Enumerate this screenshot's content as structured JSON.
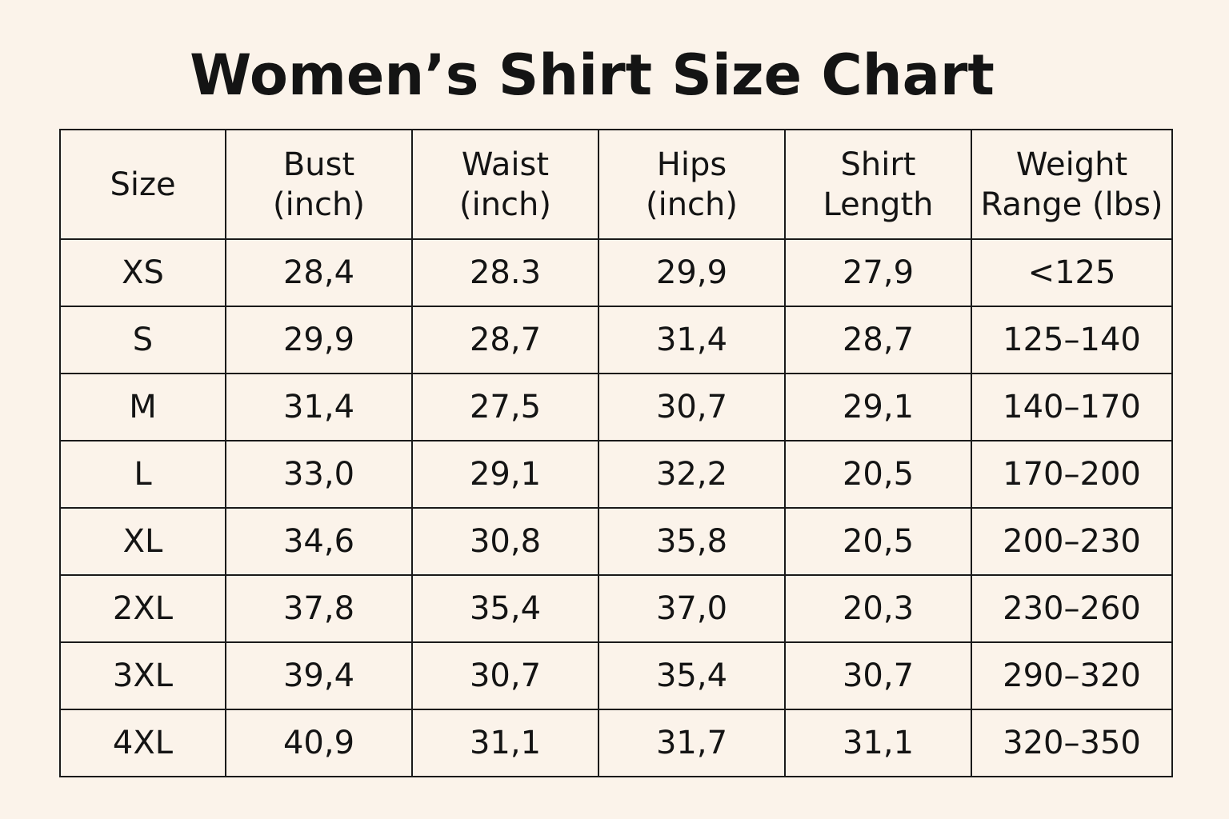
{
  "chart_data": {
    "type": "table",
    "title": "Women’s Shirt Size Chart",
    "columns": [
      [
        "Size"
      ],
      [
        "Bust",
        "(inch)"
      ],
      [
        "Waist",
        "(inch)"
      ],
      [
        "Hips",
        "(inch)"
      ],
      [
        "Shirt",
        "Length"
      ],
      [
        "Weight",
        "Range (lbs)"
      ]
    ],
    "rows": [
      [
        "XS",
        "28,4",
        "28.3",
        "29,9",
        "27,9",
        "<125"
      ],
      [
        "S",
        "29,9",
        "28,7",
        "31,4",
        "28,7",
        "125–140"
      ],
      [
        "M",
        "31,4",
        "27,5",
        "30,7",
        "29,1",
        "140–170"
      ],
      [
        "L",
        "33,0",
        "29,1",
        "32,2",
        "20,5",
        "170–200"
      ],
      [
        "XL",
        "34,6",
        "30,8",
        "35,8",
        "20,5",
        "200–230"
      ],
      [
        "2XL",
        "37,8",
        "35,4",
        "37,0",
        "20,3",
        "230–260"
      ],
      [
        "3XL",
        "39,4",
        "30,7",
        "35,4",
        "30,7",
        "290–320"
      ],
      [
        "4XL",
        "40,9",
        "31,1",
        "31,7",
        "31,1",
        "320–350"
      ]
    ]
  },
  "colors": {
    "background": "#fbf3ea",
    "text": "#141414",
    "grid_line": "#1a1a1a"
  }
}
